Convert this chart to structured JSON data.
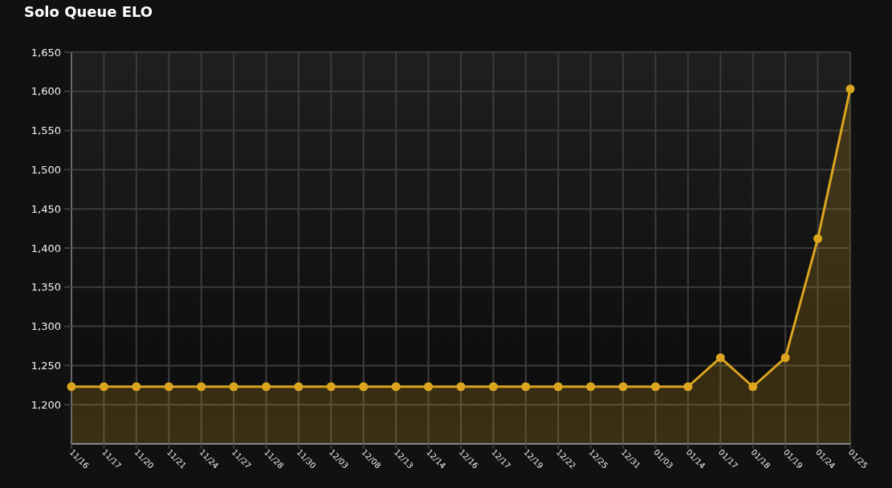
{
  "chart_data": {
    "type": "area",
    "title": "Solo Queue ELO",
    "categories": [
      "11/16",
      "11/17",
      "11/20",
      "11/21",
      "11/24",
      "11/27",
      "11/28",
      "11/30",
      "12/03",
      "12/08",
      "12/13",
      "12/14",
      "12/16",
      "12/17",
      "12/19",
      "12/22",
      "12/25",
      "12/31",
      "01/03",
      "01/14",
      "01/17",
      "01/18",
      "01/19",
      "01/24",
      "01/25"
    ],
    "values": [
      1223,
      1223,
      1223,
      1223,
      1223,
      1223,
      1223,
      1223,
      1223,
      1223,
      1223,
      1223,
      1223,
      1223,
      1223,
      1223,
      1223,
      1223,
      1223,
      1223,
      1260,
      1223,
      1260,
      1412,
      1603
    ],
    "color": "#dba520",
    "ylim": [
      1150,
      1650
    ],
    "yticks": [
      {
        "value": 1200,
        "label": "1,200"
      },
      {
        "value": 1250,
        "label": "1,250"
      },
      {
        "value": 1300,
        "label": "1,300"
      },
      {
        "value": 1350,
        "label": "1,350"
      },
      {
        "value": 1400,
        "label": "1,400"
      },
      {
        "value": 1450,
        "label": "1,450"
      },
      {
        "value": 1500,
        "label": "1,500"
      },
      {
        "value": 1550,
        "label": "1,550"
      },
      {
        "value": 1600,
        "label": "1,600"
      },
      {
        "value": 1650,
        "label": "1,650"
      }
    ],
    "grid": true,
    "marker": "circle"
  }
}
